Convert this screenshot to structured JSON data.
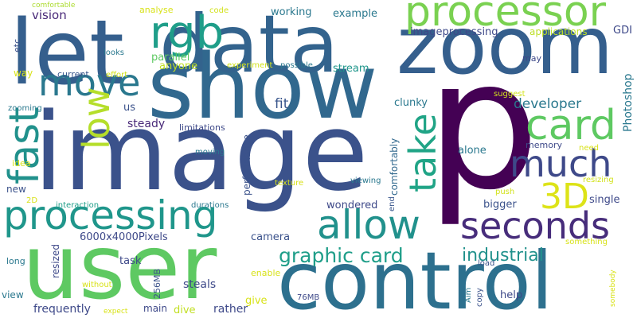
{
  "words": [
    "p",
    "image",
    "show",
    "zoom",
    "data",
    "let",
    "user",
    "control",
    "processor",
    "rgb",
    "move",
    "fast",
    "low",
    "card",
    "much",
    "take",
    "3D",
    "seconds",
    "processing",
    "allow",
    "graphic card",
    "industrial",
    "developer",
    "steady",
    "fit",
    "working",
    "example",
    "imageprocessing",
    "applications",
    "GDI",
    "vision",
    "comfortable",
    "analyse",
    "code",
    "etc",
    "looks",
    "effort",
    "current",
    "way",
    "anyone",
    "parallel",
    "experiment",
    "possible",
    "stream",
    "may",
    "Photoshop",
    "suggest",
    "zooming",
    "us",
    "clunky",
    "memory",
    "need",
    "alone",
    "moving",
    "limitations",
    "performance",
    "comfortably",
    "idea",
    "new",
    "2D",
    "interaction",
    "durations",
    "texture",
    "viewing",
    "wondered",
    "end",
    "push",
    "resizing",
    "single",
    "bigger",
    "6000x4000Pixels",
    "camera",
    "task",
    "long",
    "resized",
    "256MB",
    "steals",
    "enable",
    "something",
    "load",
    "help",
    "somebody",
    "Aim",
    "copy",
    "76MB",
    "view",
    "without",
    "frequently",
    "expect",
    "main",
    "dive",
    "rather",
    "give"
  ]
}
